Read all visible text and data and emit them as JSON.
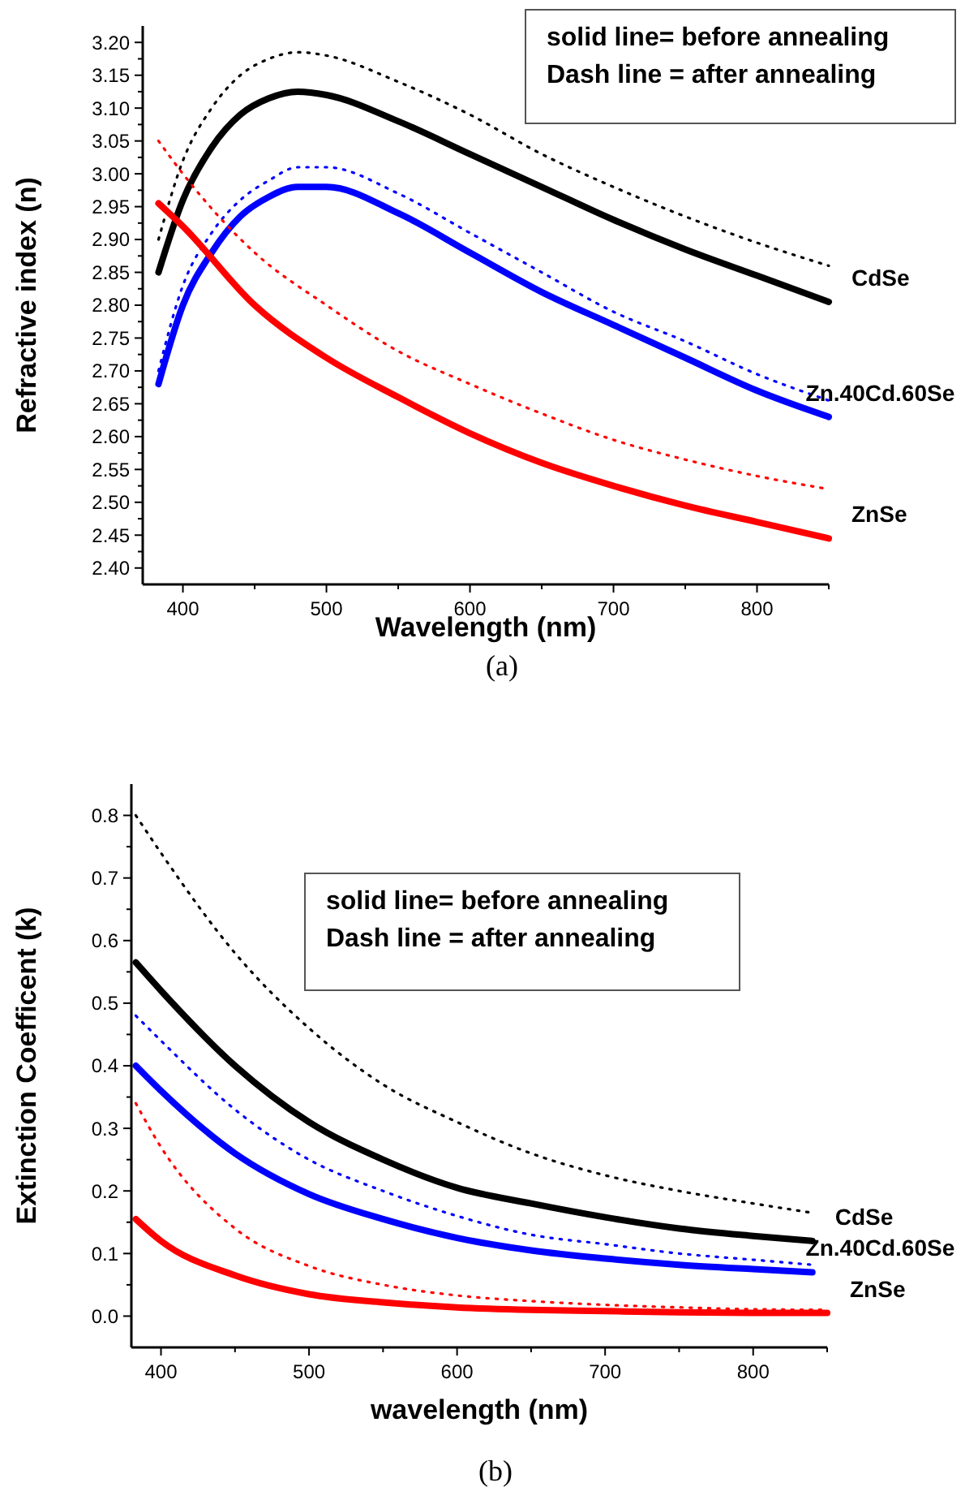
{
  "chart_data": [
    {
      "type": "line",
      "title": "(a)",
      "xlabel": "Wavelength (nm)",
      "ylabel": "Refractive index (n)",
      "xlim": [
        372,
        850
      ],
      "ylim": [
        2.375,
        3.225
      ],
      "xticks": [
        400,
        {
          "value": 450,
          "label": null
        },
        500,
        {
          "value": 550,
          "label": null
        },
        600,
        {
          "value": 650,
          "label": null
        },
        700,
        {
          "value": 750,
          "label": null
        },
        800,
        {
          "value": 850,
          "label": null
        }
      ],
      "yticks": [
        {
          "value": 2.4,
          "label": "2.40"
        },
        {
          "value": 2.425,
          "label": null
        },
        2.45,
        {
          "value": 2.475,
          "label": null
        },
        {
          "value": 2.5,
          "label": "2.50"
        },
        {
          "value": 2.525,
          "label": null
        },
        2.55,
        {
          "value": 2.575,
          "label": null
        },
        {
          "value": 2.6,
          "label": "2.60"
        },
        {
          "value": 2.625,
          "label": null
        },
        2.65,
        {
          "value": 2.675,
          "label": null
        },
        {
          "value": 2.7,
          "label": "2.70"
        },
        {
          "value": 2.725,
          "label": null
        },
        2.75,
        {
          "value": 2.775,
          "label": null
        },
        {
          "value": 2.8,
          "label": "2.80"
        },
        {
          "value": 2.825,
          "label": null
        },
        2.85,
        {
          "value": 2.875,
          "label": null
        },
        {
          "value": 2.9,
          "label": "2.90"
        },
        {
          "value": 2.925,
          "label": null
        },
        2.95,
        {
          "value": 2.975,
          "label": null
        },
        {
          "value": 3,
          "label": "3.00"
        },
        {
          "value": 3.025,
          "label": null
        },
        3.05,
        {
          "value": 3.075,
          "label": null
        },
        {
          "value": 3.1,
          "label": "3.10"
        },
        {
          "value": 3.125,
          "label": null
        },
        3.15,
        {
          "value": 3.175,
          "label": null
        },
        {
          "value": 3.2,
          "label": "3.20"
        }
      ],
      "annotations": [
        "solid line=  before annealing",
        "Dash line = after annealing"
      ],
      "series": [
        {
          "name": "CdSe",
          "color": "#000000",
          "line_style": "solid",
          "x": [
            383,
            400,
            420,
            440,
            460,
            480,
            500,
            550,
            600,
            650,
            700,
            750,
            800,
            850
          ],
          "values": [
            2.85,
            2.96,
            3.04,
            3.09,
            3.115,
            3.125,
            3.12,
            3.08,
            3.03,
            2.98,
            2.93,
            2.885,
            2.845,
            2.805
          ]
        },
        {
          "color": "#000000",
          "line_style": "dotted",
          "x": [
            383,
            400,
            420,
            440,
            460,
            480,
            500,
            550,
            600,
            650,
            700,
            750,
            800,
            850
          ],
          "values": [
            2.9,
            3.02,
            3.1,
            3.15,
            3.175,
            3.185,
            3.18,
            3.14,
            3.09,
            3.03,
            2.98,
            2.935,
            2.895,
            2.86
          ]
        },
        {
          "name": "Zn.40Cd.60Se",
          "color": "#0000ff",
          "line_style": "solid",
          "x": [
            383,
            400,
            420,
            440,
            460,
            480,
            500,
            550,
            600,
            650,
            700,
            750,
            800,
            850
          ],
          "values": [
            2.68,
            2.8,
            2.88,
            2.935,
            2.965,
            2.98,
            2.98,
            2.94,
            2.88,
            2.82,
            2.77,
            2.72,
            2.67,
            2.63
          ]
        },
        {
          "color": "#0000ff",
          "line_style": "dotted",
          "x": [
            383,
            400,
            420,
            440,
            460,
            480,
            500,
            550,
            600,
            650,
            700,
            750,
            800,
            850
          ],
          "values": [
            2.7,
            2.83,
            2.91,
            2.96,
            2.99,
            3.01,
            3.01,
            2.97,
            2.91,
            2.85,
            2.79,
            2.745,
            2.695,
            2.655
          ]
        },
        {
          "name": "ZnSe",
          "color": "#ff0000",
          "line_style": "solid",
          "x": [
            383,
            400,
            450,
            500,
            550,
            600,
            650,
            700,
            750,
            800,
            850
          ],
          "values": [
            2.955,
            2.92,
            2.8,
            2.72,
            2.66,
            2.605,
            2.56,
            2.525,
            2.495,
            2.47,
            2.445
          ]
        },
        {
          "color": "#ff0000",
          "line_style": "dotted",
          "x": [
            383,
            400,
            450,
            500,
            550,
            600,
            650,
            700,
            750,
            800,
            850
          ],
          "values": [
            3.05,
            3.0,
            2.88,
            2.8,
            2.73,
            2.68,
            2.635,
            2.595,
            2.565,
            2.54,
            2.52
          ]
        }
      ]
    },
    {
      "type": "line",
      "title": "(b)",
      "xlabel": "wavelength (nm)",
      "ylabel": "Extinction Coefficent (k)",
      "xlim": [
        380,
        850
      ],
      "ylim": [
        -0.05,
        0.85
      ],
      "xticks": [
        400,
        {
          "value": 450,
          "label": null
        },
        500,
        {
          "value": 550,
          "label": null
        },
        600,
        {
          "value": 650,
          "label": null
        },
        700,
        {
          "value": 750,
          "label": null
        },
        800,
        {
          "value": 850,
          "label": null
        }
      ],
      "yticks": [
        {
          "value": 0,
          "label": "0.0"
        },
        {
          "value": 0.05,
          "label": null
        },
        0.1,
        {
          "value": 0.15,
          "label": null
        },
        0.2,
        {
          "value": 0.25,
          "label": null
        },
        0.3,
        {
          "value": 0.35,
          "label": null
        },
        0.4,
        {
          "value": 0.45,
          "label": null
        },
        0.5,
        {
          "value": 0.55,
          "label": null
        },
        0.6,
        {
          "value": 0.65,
          "label": null
        },
        0.7,
        {
          "value": 0.75,
          "label": null
        },
        0.8
      ],
      "annotations": [
        "solid line=  before annealing",
        "Dash line = after annealing"
      ],
      "series": [
        {
          "name": "CdSe",
          "color": "#000000",
          "line_style": "solid",
          "x": [
            383,
            400,
            450,
            500,
            550,
            600,
            650,
            700,
            750,
            800,
            840
          ],
          "values": [
            0.565,
            0.52,
            0.4,
            0.31,
            0.25,
            0.205,
            0.18,
            0.158,
            0.14,
            0.128,
            0.12
          ]
        },
        {
          "color": "#000000",
          "line_style": "dotted",
          "x": [
            383,
            400,
            450,
            500,
            550,
            600,
            650,
            700,
            750,
            800,
            840
          ],
          "values": [
            0.8,
            0.74,
            0.58,
            0.46,
            0.37,
            0.31,
            0.26,
            0.225,
            0.2,
            0.18,
            0.165
          ]
        },
        {
          "name": "Zn.40Cd.60Se",
          "color": "#0000ff",
          "line_style": "solid",
          "x": [
            383,
            400,
            450,
            500,
            550,
            600,
            650,
            700,
            750,
            800,
            840
          ],
          "values": [
            0.4,
            0.36,
            0.26,
            0.195,
            0.155,
            0.125,
            0.105,
            0.092,
            0.082,
            0.075,
            0.07
          ]
        },
        {
          "color": "#0000ff",
          "line_style": "dotted",
          "x": [
            383,
            400,
            450,
            500,
            550,
            600,
            650,
            700,
            750,
            800,
            840
          ],
          "values": [
            0.48,
            0.44,
            0.33,
            0.25,
            0.2,
            0.16,
            0.13,
            0.115,
            0.1,
            0.09,
            0.082
          ]
        },
        {
          "name": "ZnSe",
          "color": "#ff0000",
          "line_style": "solid",
          "x": [
            383,
            400,
            450,
            500,
            550,
            600,
            650,
            700,
            750,
            800,
            850
          ],
          "values": [
            0.155,
            0.12,
            0.065,
            0.035,
            0.022,
            0.014,
            0.01,
            0.008,
            0.006,
            0.005,
            0.005
          ]
        },
        {
          "color": "#ff0000",
          "line_style": "dotted",
          "x": [
            383,
            400,
            450,
            500,
            550,
            600,
            650,
            700,
            750,
            800,
            850
          ],
          "values": [
            0.34,
            0.27,
            0.14,
            0.08,
            0.05,
            0.033,
            0.024,
            0.018,
            0.014,
            0.011,
            0.01
          ]
        }
      ]
    }
  ]
}
